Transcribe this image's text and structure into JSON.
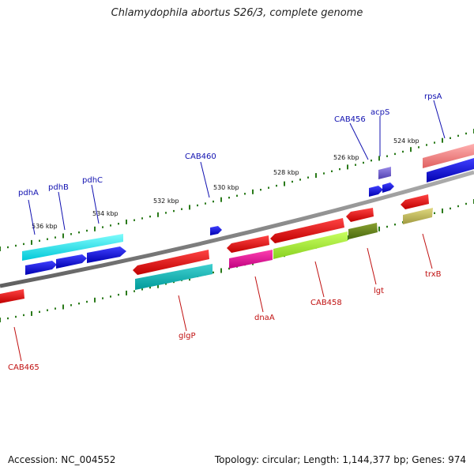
{
  "title": "Chlamydophila abortus S26/3, complete genome",
  "footer": {
    "accession": "Accession: NC_004552",
    "summary": "Topology: circular; Length: 1,144,377 bp; Genes: 974"
  },
  "colors": {
    "backbone": "#8a8a8a",
    "ticks": "#2a7a1a",
    "label_top": "#1010b0",
    "label_bottom": "#c01010"
  },
  "scale_labels": [
    "536 kbp",
    "534 kbp",
    "532 kbp",
    "530 kbp",
    "528 kbp",
    "526 kbp",
    "524 kbp"
  ],
  "genes_top": [
    {
      "label": "pdhA",
      "color": "#00e0e0"
    },
    {
      "label": "pdhB",
      "color": "#0000dd"
    },
    {
      "label": "pdhC",
      "color": "#0000dd"
    },
    {
      "label": "CAB460",
      "color": "#0000dd"
    },
    {
      "label": "CAB456",
      "color": "#0000dd"
    },
    {
      "label": "acpS",
      "color": "#6a5acd"
    },
    {
      "label": "rpsA",
      "color": "#0000dd"
    }
  ],
  "genes_bottom": [
    {
      "label": "CAB465",
      "color": "#ee0000"
    },
    {
      "label": "glgP",
      "color": "#ee0000"
    },
    {
      "label": "dnaA",
      "color": "#ee0000"
    },
    {
      "label": "CAB458",
      "color": "#ee0000"
    },
    {
      "label": "lgt",
      "color": "#ee0000"
    },
    {
      "label": "trxB",
      "color": "#ee0000"
    }
  ]
}
